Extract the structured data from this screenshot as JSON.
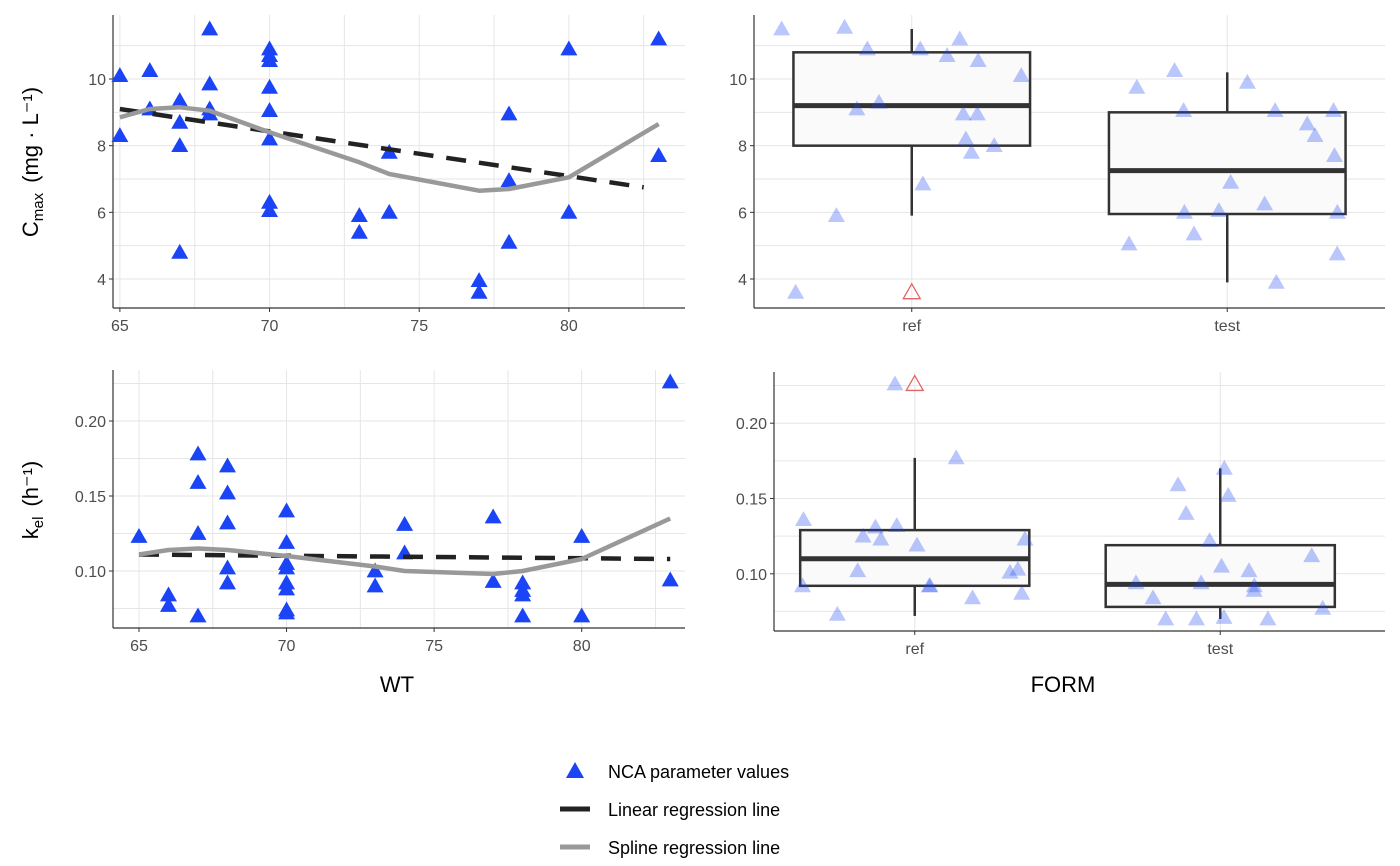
{
  "colors": {
    "points": "#1a44f5",
    "linear": "#222222",
    "spline": "#999999",
    "outlier": "#e06666",
    "box_fill": "#fafafa",
    "box_line": "#333333"
  },
  "legend": {
    "placement": "bottom",
    "items": [
      {
        "label": "NCA parameter values",
        "icon": "blue-triangle-icon"
      },
      {
        "label": "Linear regression line",
        "icon": "dashed-line-icon"
      },
      {
        "label": "Spline regression line",
        "icon": "gray-line-icon"
      }
    ]
  },
  "chart_data": [
    {
      "type": "scatter",
      "xlabel": "",
      "ylabel": {
        "main": "C",
        "sub": "max",
        "unit": "(mg · L⁻¹)"
      },
      "xlim": [
        64.77,
        83.88
      ],
      "ylim": [
        3.13,
        11.92
      ],
      "xticks": [
        65,
        70,
        75,
        80
      ],
      "yticks": [
        4,
        6,
        8,
        10
      ],
      "xtick_labels": [
        "65",
        "70",
        "75",
        "80"
      ],
      "ytick_labels": [
        "4",
        "6",
        "8",
        "10"
      ],
      "grid": true,
      "points": [
        [
          65,
          10.1
        ],
        [
          65,
          8.3
        ],
        [
          66,
          10.25
        ],
        [
          66,
          9.1
        ],
        [
          67,
          9.35
        ],
        [
          67,
          8.7
        ],
        [
          67,
          8.0
        ],
        [
          67,
          4.8
        ],
        [
          68,
          11.5
        ],
        [
          68,
          9.85
        ],
        [
          68,
          9.1
        ],
        [
          68,
          8.95
        ],
        [
          70,
          10.9
        ],
        [
          70,
          10.7
        ],
        [
          70,
          10.55
        ],
        [
          70,
          9.75
        ],
        [
          70,
          9.05
        ],
        [
          70,
          8.2
        ],
        [
          70,
          6.3
        ],
        [
          70,
          6.05
        ],
        [
          73,
          5.9
        ],
        [
          73,
          5.4
        ],
        [
          74,
          7.8
        ],
        [
          74,
          6.0
        ],
        [
          77,
          3.95
        ],
        [
          77,
          3.6
        ],
        [
          78,
          8.95
        ],
        [
          78,
          6.95
        ],
        [
          78,
          5.1
        ],
        [
          80,
          10.9
        ],
        [
          80,
          6.0
        ],
        [
          83,
          11.2
        ],
        [
          83,
          7.7
        ]
      ],
      "linear": [
        [
          65,
          9.1
        ],
        [
          82.5,
          6.75
        ]
      ],
      "spline": [
        [
          65,
          8.85
        ],
        [
          66,
          9.1
        ],
        [
          67,
          9.15
        ],
        [
          68,
          9.05
        ],
        [
          70,
          8.4
        ],
        [
          73,
          7.5
        ],
        [
          74,
          7.15
        ],
        [
          77,
          6.65
        ],
        [
          78,
          6.7
        ],
        [
          80,
          7.05
        ],
        [
          83,
          8.65
        ]
      ]
    },
    {
      "type": "box",
      "xlabel": "",
      "categories": [
        "ref",
        "test"
      ],
      "ylim": [
        3.13,
        11.92
      ],
      "yticks": [
        4,
        6,
        8,
        10
      ],
      "ytick_labels": [
        "4",
        "6",
        "8",
        "10"
      ],
      "grid": true,
      "boxes": [
        {
          "category": "ref",
          "lower_whisker": 5.9,
          "q1": 8.0,
          "median": 9.2,
          "q3": 10.8,
          "upper_whisker": 11.5,
          "outliers": [
            3.6
          ],
          "points": [
            11.5,
            10.1,
            9.1,
            5.9,
            7.8,
            10.9,
            10.9,
            8.95,
            10.55,
            6.85,
            11.2,
            10.7,
            8.0,
            11.55,
            9.3,
            8.2,
            8.95,
            3.6
          ]
        },
        {
          "category": "test",
          "lower_whisker": 3.9,
          "q1": 5.95,
          "median": 7.25,
          "q3": 9.0,
          "upper_whisker": 10.2,
          "outliers": [],
          "points": [
            9.05,
            6.05,
            4.75,
            8.65,
            5.05,
            6.9,
            6.0,
            3.9,
            6.25,
            9.9,
            7.7,
            9.05,
            5.35,
            6.0,
            8.3,
            9.05,
            9.75,
            10.25
          ]
        }
      ]
    },
    {
      "type": "scatter",
      "xlabel": "WT",
      "ylabel": {
        "main": "k",
        "sub": "el",
        "unit": "(h⁻¹)"
      },
      "xlim": [
        64.12,
        83.5
      ],
      "ylim": [
        0.062,
        0.234
      ],
      "xticks": [
        65,
        70,
        75,
        80
      ],
      "yticks": [
        0.1,
        0.15,
        0.2
      ],
      "xtick_labels": [
        "65",
        "70",
        "75",
        "80"
      ],
      "ytick_labels": [
        "0.10",
        "0.15",
        "0.20"
      ],
      "grid": true,
      "points": [
        [
          65,
          0.123
        ],
        [
          66,
          0.084
        ],
        [
          66,
          0.077
        ],
        [
          67,
          0.178
        ],
        [
          67,
          0.159
        ],
        [
          67,
          0.125
        ],
        [
          67,
          0.07
        ],
        [
          68,
          0.17
        ],
        [
          68,
          0.152
        ],
        [
          68,
          0.132
        ],
        [
          68,
          0.102
        ],
        [
          68,
          0.092
        ],
        [
          70,
          0.14
        ],
        [
          70,
          0.119
        ],
        [
          70,
          0.105
        ],
        [
          70,
          0.102
        ],
        [
          70,
          0.092
        ],
        [
          70,
          0.088
        ],
        [
          70,
          0.074
        ],
        [
          70,
          0.072
        ],
        [
          73,
          0.1
        ],
        [
          73,
          0.09
        ],
        [
          74,
          0.131
        ],
        [
          74,
          0.112
        ],
        [
          77,
          0.136
        ],
        [
          77,
          0.093
        ],
        [
          78,
          0.092
        ],
        [
          78,
          0.087
        ],
        [
          78,
          0.084
        ],
        [
          78,
          0.07
        ],
        [
          80,
          0.123
        ],
        [
          80,
          0.07
        ],
        [
          83,
          0.226
        ],
        [
          83,
          0.094
        ]
      ],
      "linear": [
        [
          65,
          0.111
        ],
        [
          83,
          0.108
        ]
      ],
      "spline": [
        [
          65,
          0.111
        ],
        [
          66,
          0.114
        ],
        [
          67,
          0.115
        ],
        [
          68,
          0.114
        ],
        [
          70,
          0.11
        ],
        [
          73,
          0.103
        ],
        [
          74,
          0.1
        ],
        [
          77,
          0.098
        ],
        [
          78,
          0.1
        ],
        [
          80,
          0.108
        ],
        [
          83,
          0.135
        ]
      ]
    },
    {
      "type": "box",
      "xlabel": "FORM",
      "categories": [
        "ref",
        "test"
      ],
      "ylim": [
        0.062,
        0.234
      ],
      "yticks": [
        0.1,
        0.15,
        0.2
      ],
      "ytick_labels": [
        "0.10",
        "0.15",
        "0.20"
      ],
      "grid": true,
      "boxes": [
        {
          "category": "ref",
          "lower_whisker": 0.072,
          "q1": 0.092,
          "median": 0.11,
          "q3": 0.129,
          "upper_whisker": 0.177,
          "outliers": [
            0.226
          ],
          "points": [
            0.132,
            0.125,
            0.123,
            0.092,
            0.084,
            0.101,
            0.136,
            0.102,
            0.092,
            0.119,
            0.226,
            0.073,
            0.103,
            0.092,
            0.123,
            0.131,
            0.177,
            0.087
          ]
        },
        {
          "category": "test",
          "lower_whisker": 0.07,
          "q1": 0.078,
          "median": 0.093,
          "q3": 0.119,
          "upper_whisker": 0.17,
          "outliers": [],
          "points": [
            0.071,
            0.094,
            0.07,
            0.07,
            0.14,
            0.094,
            0.159,
            0.152,
            0.102,
            0.084,
            0.077,
            0.122,
            0.112,
            0.092,
            0.089,
            0.17,
            0.105,
            0.07
          ]
        }
      ]
    }
  ]
}
